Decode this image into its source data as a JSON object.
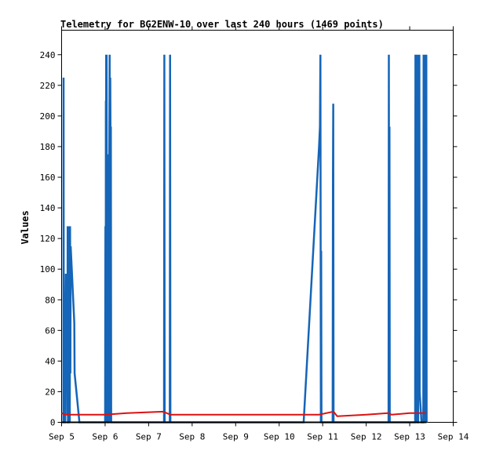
{
  "chart_data": {
    "type": "line",
    "title": "Telemetry for BG2ENW-10 over last 240 hours (1469 points)",
    "xlabel": "",
    "ylabel": "Values",
    "xlim": [
      "2024-09-05T00:00",
      "2024-09-14T00:00"
    ],
    "ylim": [
      0,
      256
    ],
    "x_tick_labels": [
      "Sep 5",
      "Sep 6",
      "Sep 7",
      "Sep 8",
      "Sep 9",
      "Sep 10",
      "Sep 11",
      "Sep 12",
      "Sep 13",
      "Sep 14"
    ],
    "y_ticks": [
      0,
      20,
      40,
      60,
      80,
      100,
      120,
      140,
      160,
      180,
      200,
      220,
      240
    ],
    "grid": false,
    "legend": "none",
    "colors": {
      "blue_series": "#1565b8",
      "red_series": "#dd1111",
      "black_series": "#000000"
    },
    "series": [
      {
        "color": "#1565b8",
        "points": [
          [
            "2024-09-05T01:00",
            0
          ],
          [
            "2024-09-05T01:05",
            225
          ],
          [
            "2024-09-05T01:12",
            0
          ],
          [
            "2024-09-05T02:00",
            0
          ],
          [
            "2024-09-05T02:10",
            73
          ],
          [
            "2024-09-05T02:20",
            97
          ],
          [
            "2024-09-05T02:30",
            48
          ],
          [
            "2024-09-05T02:40",
            85
          ],
          [
            "2024-09-05T02:50",
            60
          ],
          [
            "2024-09-05T03:00",
            80
          ],
          [
            "2024-09-05T03:10",
            5
          ],
          [
            "2024-09-05T03:20",
            128
          ],
          [
            "2024-09-05T03:30",
            0
          ],
          [
            "2024-09-05T04:00",
            0
          ],
          [
            "2024-09-05T04:10",
            80
          ],
          [
            "2024-09-05T04:20",
            128
          ],
          [
            "2024-09-05T04:30",
            0
          ],
          [
            "2024-09-05T04:40",
            128
          ],
          [
            "2024-09-05T04:50",
            32
          ],
          [
            "2024-09-05T05:00",
            115
          ],
          [
            "2024-09-05T07:00",
            65
          ],
          [
            "2024-09-05T07:10",
            32
          ],
          [
            "2024-09-05T09:50",
            0
          ],
          [
            "2024-09-06T00:00",
            0
          ],
          [
            "2024-09-06T00:10",
            128
          ],
          [
            "2024-09-06T00:20",
            0
          ],
          [
            "2024-09-06T00:25",
            210
          ],
          [
            "2024-09-06T00:30",
            0
          ],
          [
            "2024-09-06T00:35",
            240
          ],
          [
            "2024-09-06T00:45",
            0
          ],
          [
            "2024-09-06T00:50",
            240
          ],
          [
            "2024-09-06T01:00",
            80
          ],
          [
            "2024-09-06T01:10",
            0
          ],
          [
            "2024-09-06T01:20",
            145
          ],
          [
            "2024-09-06T01:30",
            0
          ],
          [
            "2024-09-06T01:50",
            0
          ],
          [
            "2024-09-06T02:00",
            175
          ],
          [
            "2024-09-06T02:10",
            60
          ],
          [
            "2024-09-06T02:20",
            178
          ],
          [
            "2024-09-06T02:30",
            240
          ],
          [
            "2024-09-06T02:40",
            0
          ],
          [
            "2024-09-06T02:50",
            225
          ],
          [
            "2024-09-06T03:00",
            180
          ],
          [
            "2024-09-06T03:10",
            193
          ],
          [
            "2024-09-06T03:20",
            0
          ],
          [
            "2024-09-07T08:30",
            0
          ],
          [
            "2024-09-07T08:40",
            240
          ],
          [
            "2024-09-07T08:50",
            0
          ],
          [
            "2024-09-07T11:40",
            0
          ],
          [
            "2024-09-07T11:50",
            240
          ],
          [
            "2024-09-07T12:00",
            0
          ],
          [
            "2024-09-10T13:30",
            0
          ],
          [
            "2024-09-10T22:00",
            180
          ],
          [
            "2024-09-10T22:30",
            193
          ],
          [
            "2024-09-10T22:45",
            240
          ],
          [
            "2024-09-10T23:00",
            0
          ],
          [
            "2024-09-10T23:10",
            112
          ],
          [
            "2024-09-10T23:20",
            0
          ],
          [
            "2024-09-11T05:30",
            0
          ],
          [
            "2024-09-11T05:40",
            160
          ],
          [
            "2024-09-11T05:50",
            208
          ],
          [
            "2024-09-11T06:00",
            0
          ],
          [
            "2024-09-12T12:20",
            0
          ],
          [
            "2024-09-12T12:30",
            240
          ],
          [
            "2024-09-12T12:40",
            0
          ],
          [
            "2024-09-12T12:50",
            193
          ],
          [
            "2024-09-12T13:00",
            0
          ],
          [
            "2024-09-13T03:00",
            0
          ],
          [
            "2024-09-13T03:10",
            240
          ],
          [
            "2024-09-13T03:20",
            0
          ],
          [
            "2024-09-13T03:30",
            240
          ],
          [
            "2024-09-13T03:40",
            0
          ],
          [
            "2024-09-13T03:50",
            240
          ],
          [
            "2024-09-13T04:00",
            0
          ],
          [
            "2024-09-13T04:10",
            193
          ],
          [
            "2024-09-13T04:20",
            0
          ],
          [
            "2024-09-13T04:40",
            0
          ],
          [
            "2024-09-13T04:50",
            240
          ],
          [
            "2024-09-13T05:00",
            210
          ],
          [
            "2024-09-13T05:10",
            30
          ],
          [
            "2024-09-13T05:20",
            240
          ],
          [
            "2024-09-13T05:30",
            20
          ],
          [
            "2024-09-13T06:30",
            0
          ],
          [
            "2024-09-13T07:30",
            0
          ],
          [
            "2024-09-13T07:40",
            240
          ],
          [
            "2024-09-13T07:50",
            0
          ],
          [
            "2024-09-13T08:00",
            112
          ],
          [
            "2024-09-13T08:10",
            240
          ],
          [
            "2024-09-13T08:20",
            0
          ],
          [
            "2024-09-13T08:30",
            240
          ],
          [
            "2024-09-13T08:40",
            0
          ],
          [
            "2024-09-13T08:50",
            240
          ],
          [
            "2024-09-13T09:00",
            0
          ],
          [
            "2024-09-13T09:10",
            240
          ],
          [
            "2024-09-13T09:20",
            0
          ]
        ]
      },
      {
        "color": "#dd1111",
        "points": [
          [
            "2024-09-05T00:00",
            6
          ],
          [
            "2024-09-05T02:00",
            5
          ],
          [
            "2024-09-06T00:00",
            5
          ],
          [
            "2024-09-06T12:00",
            6
          ],
          [
            "2024-09-07T08:00",
            7
          ],
          [
            "2024-09-07T12:00",
            5
          ],
          [
            "2024-09-10T22:00",
            5
          ],
          [
            "2024-09-11T06:00",
            7
          ],
          [
            "2024-09-11T08:00",
            4
          ],
          [
            "2024-09-12T00:00",
            5
          ],
          [
            "2024-09-12T12:00",
            6
          ],
          [
            "2024-09-12T14:00",
            5
          ],
          [
            "2024-09-13T00:00",
            6
          ],
          [
            "2024-09-13T09:00",
            6
          ]
        ]
      },
      {
        "color": "#000000",
        "points": [
          [
            "2024-09-05T00:00",
            0
          ],
          [
            "2024-09-13T09:20",
            0
          ]
        ]
      }
    ]
  }
}
